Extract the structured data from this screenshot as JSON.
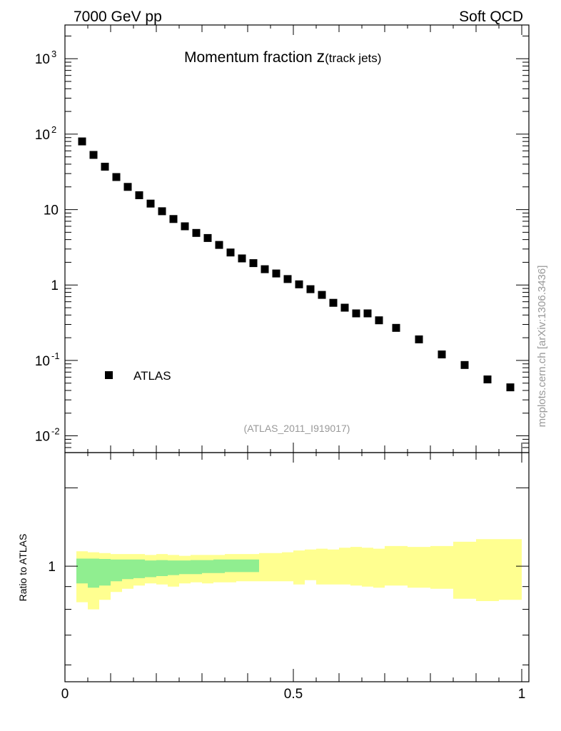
{
  "header": {
    "left": "7000 GeV pp",
    "right": "Soft QCD"
  },
  "title": {
    "main": "Momentum fraction ",
    "var": "z",
    "sub": "(track jets)"
  },
  "analysis_id": "(ATLAS_2011_I919017)",
  "side_credit": "mcplots.cern.ch [arXiv:1306.3436]",
  "ratio_ylabel": "Ratio to ATLAS",
  "legend": {
    "label": "ATLAS"
  },
  "colors": {
    "marker": "#000000",
    "band_inner": "#90ee90",
    "band_outer": "#ffff90",
    "frame": "#000000",
    "secondary_text": "#999999"
  },
  "chart_data": [
    {
      "type": "scatter",
      "title": "Momentum fraction z(track jets)",
      "y_scale": "log",
      "xlim": [
        0,
        1
      ],
      "ylim": [
        0.006,
        2800
      ],
      "y_tick_labels": [
        {
          "value": 0.01,
          "base": "10",
          "exp": "-2"
        },
        {
          "value": 0.1,
          "base": "10",
          "exp": "-1"
        },
        {
          "value": 1,
          "base": "1",
          "exp": ""
        },
        {
          "value": 10,
          "base": "10",
          "exp": ""
        },
        {
          "value": 100,
          "base": "10",
          "exp": "2"
        },
        {
          "value": 1000,
          "base": "10",
          "exp": "3"
        }
      ],
      "legend_position": "lower-left",
      "series": [
        {
          "name": "ATLAS",
          "x": [
            0.0375,
            0.0625,
            0.0875,
            0.1125,
            0.1375,
            0.1625,
            0.1875,
            0.2125,
            0.2375,
            0.2625,
            0.2875,
            0.3125,
            0.3375,
            0.3625,
            0.3875,
            0.4125,
            0.4375,
            0.4625,
            0.4875,
            0.5125,
            0.5375,
            0.5625,
            0.5875,
            0.6125,
            0.6375,
            0.6625,
            0.6875,
            0.725,
            0.775,
            0.825,
            0.875,
            0.925,
            0.975
          ],
          "y": [
            80,
            53,
            37,
            27,
            20,
            15.5,
            12,
            9.5,
            7.5,
            6,
            4.9,
            4.2,
            3.4,
            2.7,
            2.25,
            1.95,
            1.62,
            1.42,
            1.2,
            1.02,
            0.88,
            0.74,
            0.58,
            0.5,
            0.42,
            0.42,
            0.34,
            0.27,
            0.19,
            0.12,
            0.087,
            0.056,
            0.044
          ]
        }
      ]
    },
    {
      "type": "area",
      "ylabel": "Ratio to ATLAS",
      "y_scale": "log",
      "xlim": [
        0,
        1
      ],
      "ylim": [
        0.55,
        1.8
      ],
      "x_tick_labels": [
        {
          "value": 0,
          "label": "0"
        },
        {
          "value": 0.5,
          "label": "0.5"
        },
        {
          "value": 1,
          "label": "1"
        }
      ],
      "y_tick_labels": [
        {
          "value": 1,
          "label": "1"
        }
      ],
      "bin_edges": [
        0.025,
        0.05,
        0.075,
        0.1,
        0.125,
        0.15,
        0.175,
        0.2,
        0.225,
        0.25,
        0.275,
        0.3,
        0.325,
        0.35,
        0.375,
        0.4,
        0.425,
        0.45,
        0.475,
        0.5,
        0.525,
        0.55,
        0.575,
        0.6,
        0.625,
        0.65,
        0.675,
        0.7,
        0.75,
        0.8,
        0.85,
        0.9,
        0.95,
        1.0
      ],
      "inner_band": {
        "lo": [
          0.915,
          0.895,
          0.905,
          0.925,
          0.935,
          0.94,
          0.945,
          0.95,
          0.955,
          0.96,
          0.96,
          0.965,
          0.965,
          0.97,
          0.97,
          0.97
        ],
        "hi": [
          1.04,
          1.04,
          1.038,
          1.035,
          1.035,
          1.035,
          1.03,
          1.032,
          1.03,
          1.03,
          1.032,
          1.032,
          1.035,
          1.035,
          1.035,
          1.035
        ]
      },
      "outer_band": {
        "lo": [
          0.83,
          0.8,
          0.84,
          0.875,
          0.89,
          0.905,
          0.915,
          0.91,
          0.9,
          0.915,
          0.92,
          0.915,
          0.92,
          0.92,
          0.925,
          0.925,
          0.925,
          0.925,
          0.925,
          0.91,
          0.93,
          0.91,
          0.91,
          0.91,
          0.905,
          0.9,
          0.895,
          0.905,
          0.895,
          0.89,
          0.845,
          0.835,
          0.84
        ],
        "hi": [
          1.08,
          1.075,
          1.07,
          1.065,
          1.065,
          1.065,
          1.06,
          1.065,
          1.06,
          1.055,
          1.06,
          1.06,
          1.06,
          1.065,
          1.065,
          1.065,
          1.07,
          1.07,
          1.075,
          1.085,
          1.09,
          1.095,
          1.09,
          1.1,
          1.105,
          1.1,
          1.095,
          1.11,
          1.105,
          1.11,
          1.135,
          1.15,
          1.15
        ]
      }
    }
  ]
}
